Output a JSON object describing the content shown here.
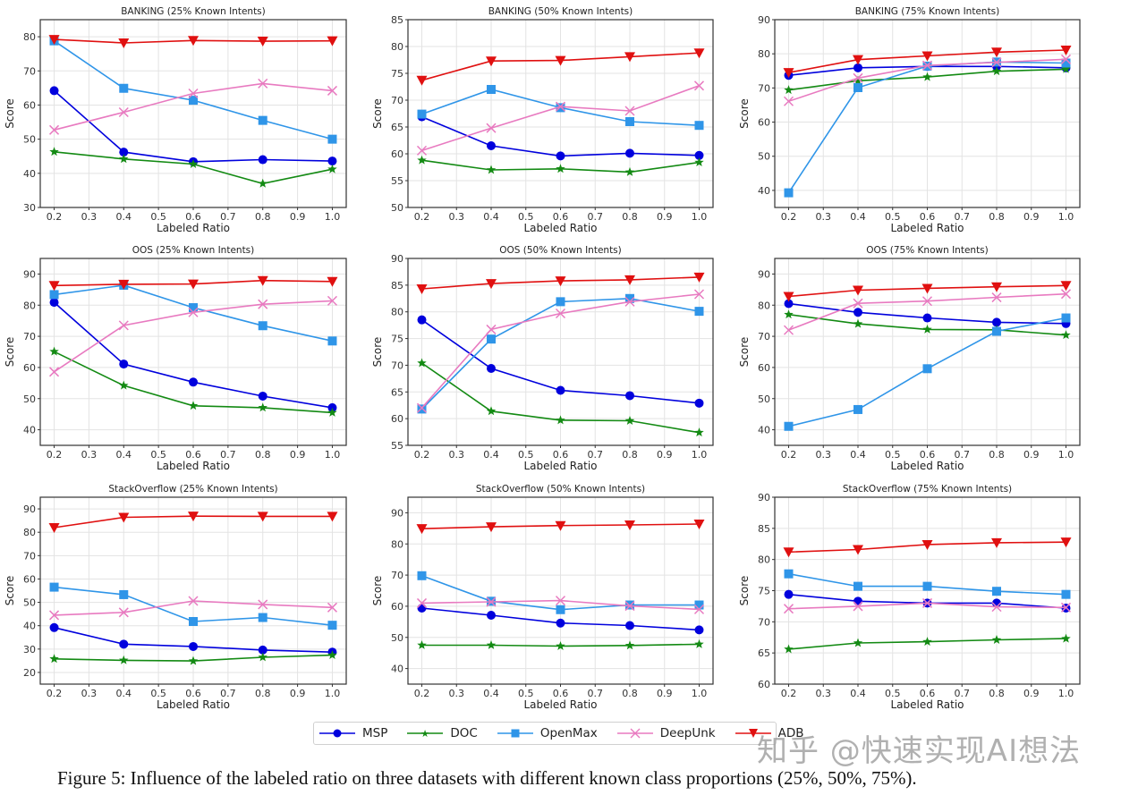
{
  "legend": [
    {
      "name": "MSP",
      "color": "#0000dd",
      "marker": "circle"
    },
    {
      "name": "DOC",
      "color": "#138a13",
      "marker": "star"
    },
    {
      "name": "OpenMax",
      "color": "#2f95e8",
      "marker": "square"
    },
    {
      "name": "DeepUnk",
      "color": "#e87ac0",
      "marker": "x"
    },
    {
      "name": "ADB",
      "color": "#e01010",
      "marker": "triangle-down"
    }
  ],
  "caption": "Figure 5: Influence of the labeled ratio on three datasets with different known class proportions (25%, 50%, 75%).",
  "watermark": "知乎 @快速实现AI想法",
  "chart_data": [
    {
      "type": "line",
      "title": "BANKING (25% Known Intents)",
      "xlabel": "Labeled Ratio",
      "ylabel": "Score",
      "x": [
        0.2,
        0.4,
        0.6,
        0.8,
        1.0
      ],
      "xticks": [
        0.2,
        0.3,
        0.4,
        0.5,
        0.6,
        0.7,
        0.8,
        0.9,
        1.0
      ],
      "ylim": [
        30,
        85
      ],
      "yticks": [
        30,
        40,
        50,
        60,
        70,
        80
      ],
      "grid": true,
      "series": [
        {
          "name": "MSP",
          "values": [
            64.2,
            46.2,
            43.4,
            44.0,
            43.6
          ]
        },
        {
          "name": "DOC",
          "values": [
            46.3,
            44.2,
            42.7,
            37.0,
            41.2
          ]
        },
        {
          "name": "OpenMax",
          "values": [
            78.8,
            64.9,
            61.4,
            55.5,
            50.0
          ]
        },
        {
          "name": "DeepUnk",
          "values": [
            52.7,
            57.9,
            63.4,
            66.3,
            64.2
          ]
        },
        {
          "name": "ADB",
          "values": [
            79.2,
            78.2,
            78.9,
            78.7,
            78.8
          ]
        }
      ]
    },
    {
      "type": "line",
      "title": "BANKING (50% Known Intents)",
      "xlabel": "Labeled Ratio",
      "ylabel": "Score",
      "x": [
        0.2,
        0.4,
        0.6,
        0.8,
        1.0
      ],
      "xticks": [
        0.2,
        0.3,
        0.4,
        0.5,
        0.6,
        0.7,
        0.8,
        0.9,
        1.0
      ],
      "ylim": [
        50,
        85
      ],
      "yticks": [
        50,
        55,
        60,
        65,
        70,
        75,
        80,
        85
      ],
      "grid": true,
      "series": [
        {
          "name": "MSP",
          "values": [
            66.9,
            61.5,
            59.6,
            60.1,
            59.7
          ]
        },
        {
          "name": "DOC",
          "values": [
            58.8,
            57.0,
            57.2,
            56.6,
            58.4
          ]
        },
        {
          "name": "OpenMax",
          "values": [
            67.4,
            72.0,
            68.6,
            66.0,
            65.3
          ]
        },
        {
          "name": "DeepUnk",
          "values": [
            60.6,
            64.8,
            68.8,
            68.0,
            72.7
          ]
        },
        {
          "name": "ADB",
          "values": [
            73.7,
            77.3,
            77.4,
            78.1,
            78.8
          ]
        }
      ]
    },
    {
      "type": "line",
      "title": "BANKING (75% Known Intents)",
      "xlabel": "Labeled Ratio",
      "ylabel": "Score",
      "x": [
        0.2,
        0.4,
        0.6,
        0.8,
        1.0
      ],
      "xticks": [
        0.2,
        0.3,
        0.4,
        0.5,
        0.6,
        0.7,
        0.8,
        0.9,
        1.0
      ],
      "ylim": [
        35,
        90
      ],
      "yticks": [
        40,
        50,
        60,
        70,
        80,
        90
      ],
      "grid": true,
      "series": [
        {
          "name": "MSP",
          "values": [
            73.7,
            75.9,
            76.3,
            76.3,
            75.9
          ]
        },
        {
          "name": "DOC",
          "values": [
            69.4,
            72.1,
            73.2,
            74.9,
            75.5
          ]
        },
        {
          "name": "OpenMax",
          "values": [
            39.3,
            70.1,
            76.4,
            77.6,
            77.3
          ]
        },
        {
          "name": "DeepUnk",
          "values": [
            66.1,
            72.9,
            76.6,
            77.5,
            78.4
          ]
        },
        {
          "name": "ADB",
          "values": [
            74.5,
            78.3,
            79.4,
            80.5,
            81.1
          ]
        }
      ]
    },
    {
      "type": "line",
      "title": "OOS (25% Known Intents)",
      "xlabel": "Labeled Ratio",
      "ylabel": "Score",
      "x": [
        0.2,
        0.4,
        0.6,
        0.8,
        1.0
      ],
      "xticks": [
        0.2,
        0.3,
        0.4,
        0.5,
        0.6,
        0.7,
        0.8,
        0.9,
        1.0
      ],
      "ylim": [
        35,
        95
      ],
      "yticks": [
        40,
        50,
        60,
        70,
        80,
        90
      ],
      "grid": true,
      "series": [
        {
          "name": "MSP",
          "values": [
            80.9,
            61.1,
            55.3,
            50.8,
            47.1
          ]
        },
        {
          "name": "DOC",
          "values": [
            65.1,
            54.2,
            47.7,
            47.1,
            45.5
          ]
        },
        {
          "name": "OpenMax",
          "values": [
            83.4,
            86.4,
            79.2,
            73.4,
            68.5
          ]
        },
        {
          "name": "DeepUnk",
          "values": [
            58.6,
            73.5,
            77.7,
            80.3,
            81.4
          ]
        },
        {
          "name": "ADB",
          "values": [
            86.3,
            86.7,
            86.8,
            87.9,
            87.6
          ]
        }
      ]
    },
    {
      "type": "line",
      "title": "OOS (50% Known Intents)",
      "xlabel": "Labeled Ratio",
      "ylabel": "Score",
      "x": [
        0.2,
        0.4,
        0.6,
        0.8,
        1.0
      ],
      "xticks": [
        0.2,
        0.3,
        0.4,
        0.5,
        0.6,
        0.7,
        0.8,
        0.9,
        1.0
      ],
      "ylim": [
        55,
        90
      ],
      "yticks": [
        55,
        60,
        65,
        70,
        75,
        80,
        85,
        90
      ],
      "grid": true,
      "series": [
        {
          "name": "MSP",
          "values": [
            78.5,
            69.4,
            65.3,
            64.3,
            62.9
          ]
        },
        {
          "name": "DOC",
          "values": [
            70.4,
            61.4,
            59.7,
            59.6,
            57.4
          ]
        },
        {
          "name": "OpenMax",
          "values": [
            61.8,
            74.9,
            81.9,
            82.5,
            80.1
          ]
        },
        {
          "name": "DeepUnk",
          "values": [
            62.0,
            76.7,
            79.7,
            81.9,
            83.3
          ]
        },
        {
          "name": "ADB",
          "values": [
            84.3,
            85.3,
            85.8,
            86.0,
            86.5
          ]
        }
      ]
    },
    {
      "type": "line",
      "title": "OOS (75% Known Intents)",
      "xlabel": "Labeled Ratio",
      "ylabel": "Score",
      "x": [
        0.2,
        0.4,
        0.6,
        0.8,
        1.0
      ],
      "xticks": [
        0.2,
        0.3,
        0.4,
        0.5,
        0.6,
        0.7,
        0.8,
        0.9,
        1.0
      ],
      "ylim": [
        35,
        95
      ],
      "yticks": [
        40,
        50,
        60,
        70,
        80,
        90
      ],
      "grid": true,
      "series": [
        {
          "name": "MSP",
          "values": [
            80.5,
            77.7,
            75.9,
            74.5,
            74.1
          ]
        },
        {
          "name": "DOC",
          "values": [
            77.0,
            74.0,
            72.2,
            72.1,
            70.4
          ]
        },
        {
          "name": "OpenMax",
          "values": [
            41.1,
            46.5,
            59.6,
            71.6,
            75.9
          ]
        },
        {
          "name": "DeepUnk",
          "values": [
            72.0,
            80.6,
            81.3,
            82.5,
            83.6
          ]
        },
        {
          "name": "ADB",
          "values": [
            82.8,
            84.8,
            85.4,
            85.9,
            86.3
          ]
        }
      ]
    },
    {
      "type": "line",
      "title": "StackOverflow (25% Known Intents)",
      "xlabel": "Labeled Ratio",
      "ylabel": "Score",
      "x": [
        0.2,
        0.4,
        0.6,
        0.8,
        1.0
      ],
      "xticks": [
        0.2,
        0.3,
        0.4,
        0.5,
        0.6,
        0.7,
        0.8,
        0.9,
        1.0
      ],
      "ylim": [
        15,
        95
      ],
      "yticks": [
        20,
        30,
        40,
        50,
        60,
        70,
        80,
        90
      ],
      "grid": true,
      "series": [
        {
          "name": "MSP",
          "values": [
            39.2,
            32.1,
            31.1,
            29.6,
            28.7
          ]
        },
        {
          "name": "DOC",
          "values": [
            25.8,
            25.2,
            24.9,
            26.5,
            27.4
          ]
        },
        {
          "name": "OpenMax",
          "values": [
            56.5,
            53.3,
            41.8,
            43.5,
            40.2
          ]
        },
        {
          "name": "DeepUnk",
          "values": [
            44.5,
            45.7,
            50.6,
            49.1,
            47.8
          ]
        },
        {
          "name": "ADB",
          "values": [
            82.0,
            86.4,
            86.9,
            86.8,
            86.8
          ]
        }
      ]
    },
    {
      "type": "line",
      "title": "StackOverflow (50% Known Intents)",
      "xlabel": "Labeled Ratio",
      "ylabel": "Score",
      "x": [
        0.2,
        0.4,
        0.6,
        0.8,
        1.0
      ],
      "xticks": [
        0.2,
        0.3,
        0.4,
        0.5,
        0.6,
        0.7,
        0.8,
        0.9,
        1.0
      ],
      "ylim": [
        35,
        95
      ],
      "yticks": [
        40,
        50,
        60,
        70,
        80,
        90
      ],
      "grid": true,
      "series": [
        {
          "name": "MSP",
          "values": [
            59.4,
            57.1,
            54.6,
            53.8,
            52.4
          ]
        },
        {
          "name": "DOC",
          "values": [
            47.5,
            47.5,
            47.2,
            47.4,
            47.8
          ]
        },
        {
          "name": "OpenMax",
          "values": [
            69.8,
            61.6,
            58.9,
            60.4,
            60.4
          ]
        },
        {
          "name": "DeepUnk",
          "values": [
            61.0,
            61.4,
            61.8,
            60.1,
            59.0
          ]
        },
        {
          "name": "ADB",
          "values": [
            84.9,
            85.5,
            85.9,
            86.1,
            86.4
          ]
        }
      ]
    },
    {
      "type": "line",
      "title": "StackOverflow (75% Known Intents)",
      "xlabel": "Labeled Ratio",
      "ylabel": "Score",
      "x": [
        0.2,
        0.4,
        0.6,
        0.8,
        1.0
      ],
      "xticks": [
        0.2,
        0.3,
        0.4,
        0.5,
        0.6,
        0.7,
        0.8,
        0.9,
        1.0
      ],
      "ylim": [
        60,
        90
      ],
      "yticks": [
        60,
        65,
        70,
        75,
        80,
        85,
        90
      ],
      "grid": true,
      "series": [
        {
          "name": "MSP",
          "values": [
            74.4,
            73.3,
            73.0,
            73.0,
            72.2
          ]
        },
        {
          "name": "DOC",
          "values": [
            65.6,
            66.6,
            66.8,
            67.1,
            67.3
          ]
        },
        {
          "name": "OpenMax",
          "values": [
            77.7,
            75.7,
            75.7,
            74.9,
            74.4
          ]
        },
        {
          "name": "DeepUnk",
          "values": [
            72.1,
            72.5,
            73.0,
            72.4,
            72.3
          ]
        },
        {
          "name": "ADB",
          "values": [
            81.2,
            81.6,
            82.4,
            82.7,
            82.8
          ]
        }
      ]
    }
  ]
}
